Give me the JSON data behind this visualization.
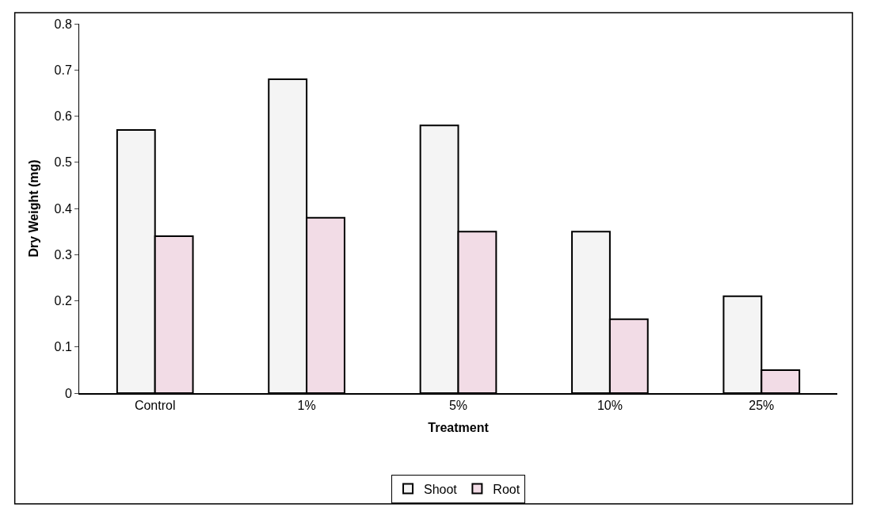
{
  "chart_data": {
    "type": "bar",
    "xlabel": "Treatment",
    "ylabel": "Dry Weight (mg)",
    "categories": [
      "Control",
      "1%",
      "5%",
      "10%",
      "25%"
    ],
    "series": [
      {
        "name": "Shoot",
        "color": "#f4f4f4",
        "values": [
          0.57,
          0.68,
          0.58,
          0.35,
          0.21
        ]
      },
      {
        "name": "Root",
        "color": "#f2dce6",
        "values": [
          0.34,
          0.38,
          0.35,
          0.16,
          0.05
        ]
      }
    ],
    "ylim": [
      0,
      0.8
    ],
    "yticks": [
      0,
      0.1,
      0.2,
      0.3,
      0.4,
      0.5,
      0.6,
      0.7,
      0.8
    ],
    "grid": false,
    "legend": "bottom"
  }
}
